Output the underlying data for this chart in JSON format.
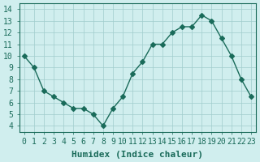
{
  "x": [
    0,
    1,
    2,
    3,
    4,
    5,
    6,
    7,
    8,
    9,
    10,
    11,
    12,
    13,
    14,
    15,
    16,
    17,
    18,
    19,
    20,
    21,
    22,
    23
  ],
  "y": [
    10,
    9,
    7,
    6.5,
    6,
    5.5,
    5.5,
    5,
    4,
    5.5,
    6.5,
    8.5,
    9.5,
    11,
    11,
    12,
    12.5,
    12.5,
    13.5,
    13,
    11.5,
    10,
    8,
    6.5
  ],
  "line_color": "#1a6b5a",
  "marker": "D",
  "marker_size": 3,
  "bg_color": "#d0eeee",
  "grid_color": "#a0cccc",
  "xlabel": "Humidex (Indice chaleur)",
  "ylabel": "",
  "xlim": [
    -0.5,
    23.5
  ],
  "ylim": [
    3.5,
    14.5
  ],
  "yticks": [
    4,
    5,
    6,
    7,
    8,
    9,
    10,
    11,
    12,
    13,
    14
  ],
  "xticks": [
    0,
    1,
    2,
    3,
    4,
    5,
    6,
    7,
    8,
    9,
    10,
    11,
    12,
    13,
    14,
    15,
    16,
    17,
    18,
    19,
    20,
    21,
    22,
    23
  ],
  "tick_color": "#1a6b5a",
  "label_color": "#1a6b5a",
  "font_size": 7,
  "xlabel_fontsize": 8
}
